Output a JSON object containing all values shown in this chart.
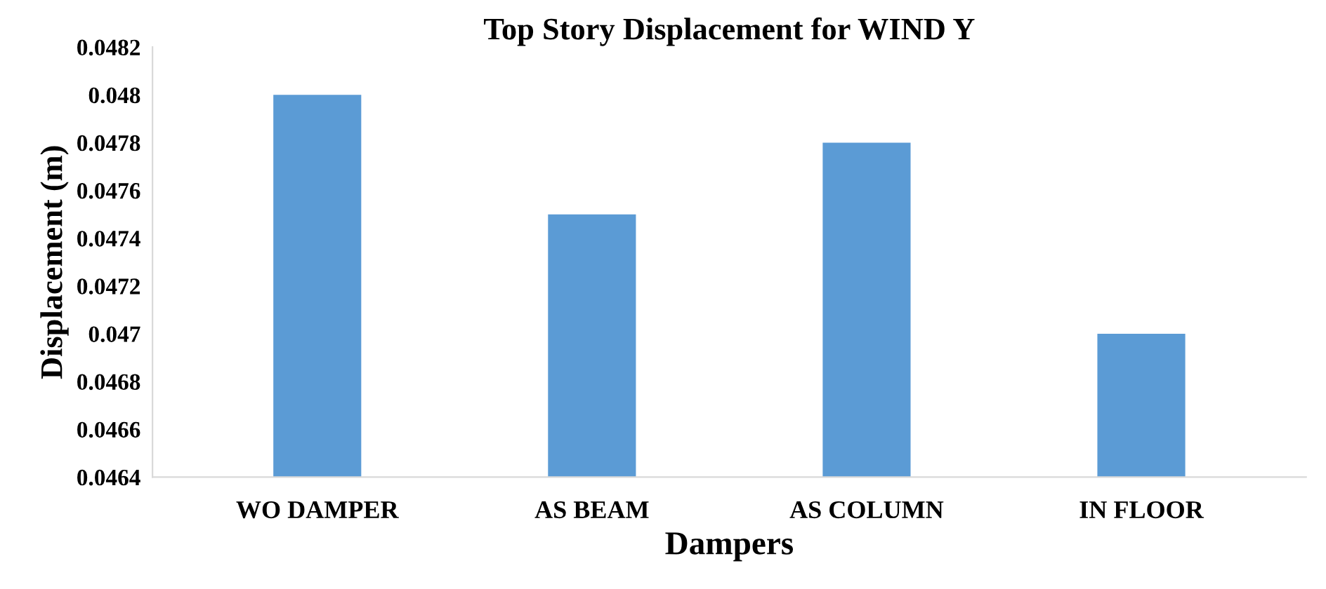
{
  "chart_data": {
    "type": "bar",
    "title": "Top Story Displacement for WIND Y",
    "xlabel": "Dampers",
    "ylabel": "Displacement (m)",
    "categories": [
      "WO DAMPER",
      "AS BEAM",
      "AS COLUMN",
      "IN FLOOR"
    ],
    "values": [
      0.048,
      0.0475,
      0.0478,
      0.047
    ],
    "color": "#5b9bd5",
    "ylim": [
      0.0464,
      0.0482
    ],
    "yticks": [
      0.0464,
      0.0466,
      0.0468,
      0.047,
      0.0472,
      0.0474,
      0.0476,
      0.0478,
      0.048,
      0.0482
    ],
    "grid": false
  }
}
